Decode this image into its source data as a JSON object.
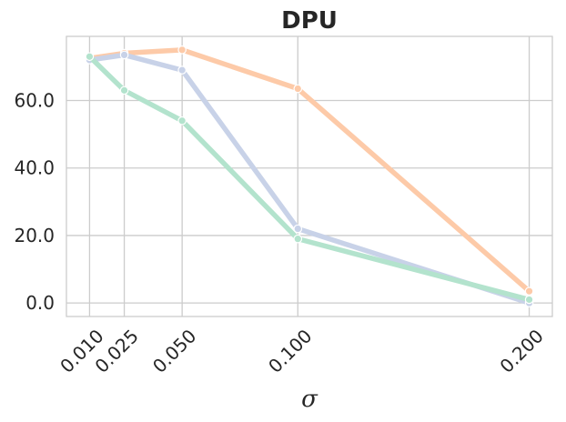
{
  "chart_data": {
    "type": "line",
    "title": "DPU",
    "xlabel": "σ",
    "ylabel": "",
    "x": [
      0.01,
      0.025,
      0.05,
      0.1,
      0.2
    ],
    "x_tick_labels": [
      "0.010",
      "0.025",
      "0.050",
      "0.100",
      "0.200"
    ],
    "y_ticks": [
      0,
      20,
      40,
      60
    ],
    "y_tick_labels": [
      "0.0",
      "20.0",
      "40.0",
      "60.0"
    ],
    "xlim": [
      0.0,
      0.21
    ],
    "ylim": [
      -4,
      79
    ],
    "grid": true,
    "series": [
      {
        "color": "#fdcaa8",
        "values": [
          72.5,
          74.0,
          75.0,
          63.5,
          3.5
        ]
      },
      {
        "color": "#c8d2e8",
        "values": [
          72.0,
          73.5,
          69.0,
          22.0,
          0.0
        ]
      },
      {
        "color": "#b3e3cd",
        "values": [
          73.0,
          63.0,
          54.0,
          19.0,
          1.0
        ]
      }
    ]
  }
}
